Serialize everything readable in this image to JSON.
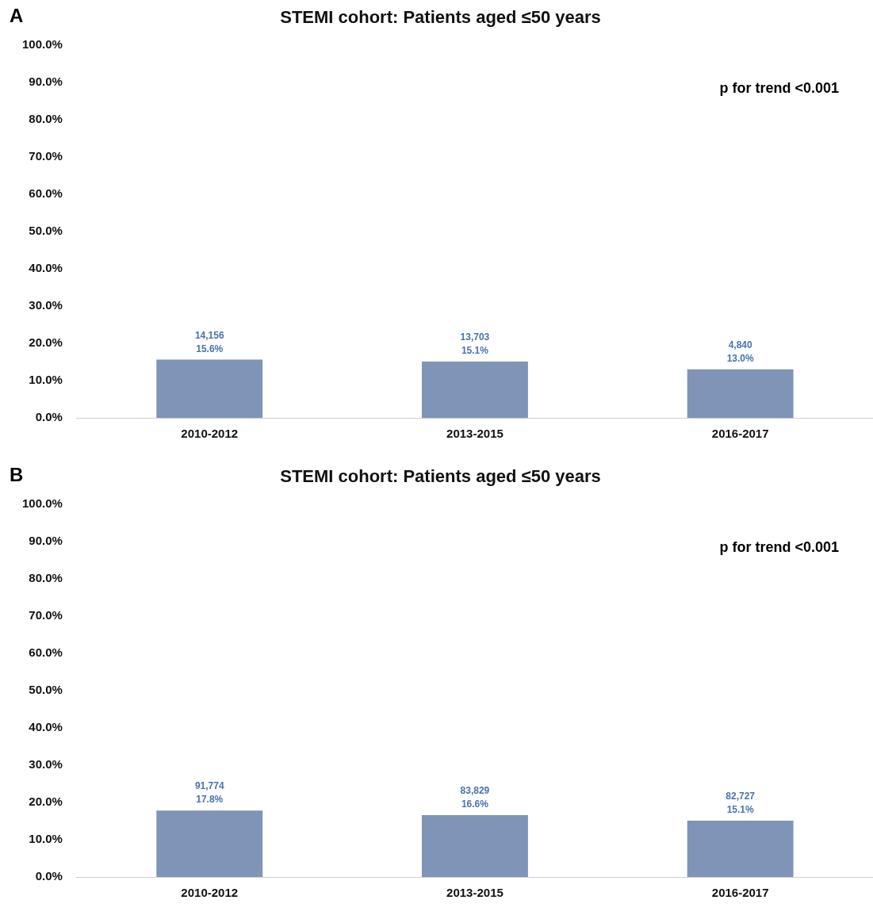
{
  "chart_data": [
    {
      "type": "bar",
      "title": "STEMI cohort: Patients aged ≤50 years",
      "annotations": [
        "A",
        "p for trend <0.001"
      ],
      "categories": [
        "2010-2012",
        "2013-2015",
        "2016-2017"
      ],
      "series": [
        {
          "color": "#7f94b6",
          "values": [
            15.6,
            15.1,
            13.0
          ],
          "value_labels": [
            "14,156\n15.6%",
            "13,703\n15.1%",
            "4,840\n13.0%"
          ]
        }
      ],
      "ylim": [
        0,
        100
      ],
      "yticks": [
        {
          "value": 0,
          "label": "0.0%"
        },
        {
          "value": 10,
          "label": "10.0%"
        },
        {
          "value": 20,
          "label": "20.0%"
        },
        {
          "value": 30,
          "label": "30.0%"
        },
        {
          "value": 40,
          "label": "40.0%"
        },
        {
          "value": 50,
          "label": "50.0%"
        },
        {
          "value": 60,
          "label": "60.0%"
        },
        {
          "value": 70,
          "label": "70.0%"
        },
        {
          "value": 80,
          "label": "80.0%"
        },
        {
          "value": 90,
          "label": "90.0%"
        },
        {
          "value": 100,
          "label": "100.0%"
        }
      ],
      "grid": false,
      "legend": false
    },
    {
      "type": "bar",
      "title": "STEMI cohort: Patients aged ≤50 years",
      "annotations": [
        "B",
        "p for trend <0.001"
      ],
      "categories": [
        "2010-2012",
        "2013-2015",
        "2016-2017"
      ],
      "series": [
        {
          "color": "#7f94b6",
          "values": [
            17.8,
            16.6,
            15.1
          ],
          "value_labels": [
            "91,774\n17.8%",
            "83,829\n16.6%",
            "82,727\n15.1%"
          ]
        }
      ],
      "ylim": [
        0,
        100
      ],
      "yticks": [
        {
          "value": 0,
          "label": "0.0%"
        },
        {
          "value": 10,
          "label": "10.0%"
        },
        {
          "value": 20,
          "label": "20.0%"
        },
        {
          "value": 30,
          "label": "30.0%"
        },
        {
          "value": 40,
          "label": "40.0%"
        },
        {
          "value": 50,
          "label": "50.0%"
        },
        {
          "value": 60,
          "label": "60.0%"
        },
        {
          "value": 70,
          "label": "70.0%"
        },
        {
          "value": 80,
          "label": "80.0%"
        },
        {
          "value": 90,
          "label": "90.0%"
        },
        {
          "value": 100,
          "label": "100.0%"
        }
      ],
      "grid": false,
      "legend": false
    }
  ]
}
